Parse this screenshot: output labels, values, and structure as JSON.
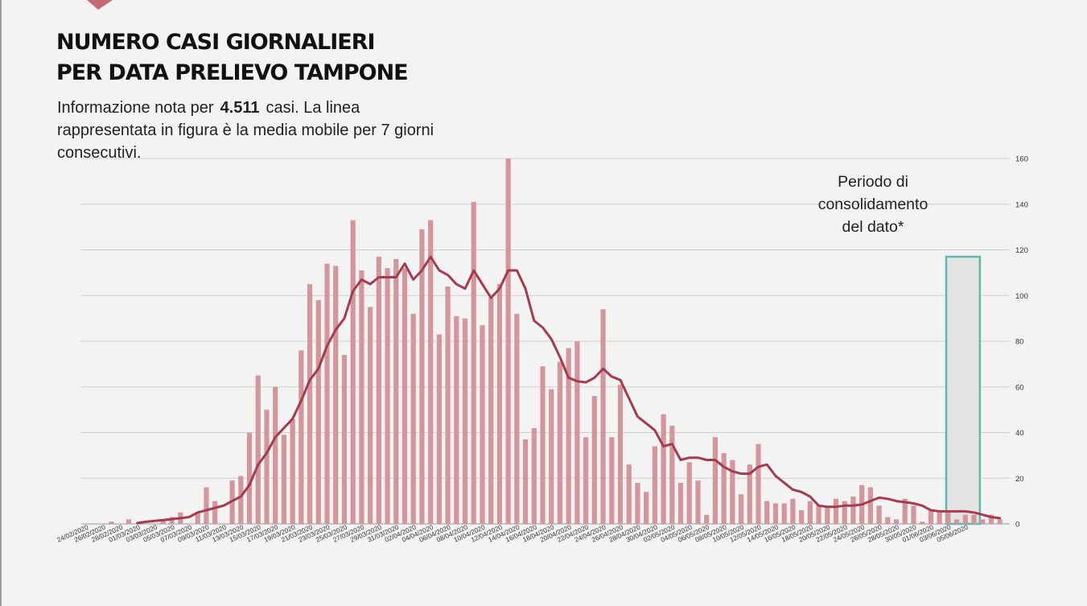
{
  "header": {
    "title_line1": "NUMERO CASI GIORNALIERI",
    "title_line2": "PER DATA PRELIEVO TAMPONE",
    "subtitle_prefix": "Informazione nota per",
    "subtitle_number": "4.511",
    "subtitle_suffix": "casi. La linea rappresentata in figura è la media mobile per 7 giorni consecutivi."
  },
  "annotation": {
    "line1": "Periodo di",
    "line2": "consolidamento",
    "line3": "del dato*"
  },
  "colors": {
    "bar": "#d3969b",
    "line": "#a83a4c",
    "highlight_border": "#5fb8ad",
    "highlight_fill": "#e4e4e4",
    "grid": "#cfcfcf"
  },
  "chart_data": {
    "type": "bar",
    "ylim": [
      0,
      160
    ],
    "yticks": [
      0,
      20,
      40,
      60,
      80,
      100,
      120,
      140,
      160
    ],
    "tick_labels": [
      "24/02/2020",
      "26/02/2020",
      "28/02/2020",
      "01/03/2020",
      "03/03/2020",
      "05/03/2020",
      "07/03/2020",
      "09/03/2020",
      "11/03/2020",
      "13/03/2020",
      "15/03/2020",
      "17/03/2020",
      "19/03/2020",
      "21/03/2020",
      "23/03/2020",
      "25/03/2020",
      "27/03/2020",
      "29/03/2020",
      "31/03/2020",
      "02/04/2020",
      "04/04/2020",
      "06/04/2020",
      "08/04/2020",
      "10/04/2020",
      "12/04/2020",
      "14/04/2020",
      "16/04/2020",
      "18/04/2020",
      "20/04/2020",
      "22/04/2020",
      "24/04/2020",
      "26/04/2020",
      "28/04/2020",
      "30/04/2020",
      "02/05/2020",
      "04/05/2020",
      "06/05/2020",
      "08/05/2020",
      "10/05/2020",
      "12/05/2020",
      "14/05/2020",
      "16/05/2020",
      "18/05/2020",
      "20/05/2020",
      "22/05/2020",
      "24/05/2020",
      "26/05/2020",
      "28/05/2020",
      "30/05/2020",
      "01/06/2020",
      "03/06/2020",
      "05/06/2020"
    ],
    "consolidation_period": {
      "from_index": 100,
      "to_index": 103
    },
    "series": [
      {
        "type": "bar",
        "values": [
          0,
          0,
          0,
          1,
          0,
          2,
          0,
          0,
          0,
          2,
          3,
          5,
          0,
          5,
          16,
          10,
          0,
          19,
          21,
          40,
          65,
          50,
          60,
          39,
          46,
          76,
          105,
          98,
          114,
          113,
          74,
          133,
          111,
          95,
          117,
          112,
          116,
          112,
          92,
          129,
          133,
          83,
          104,
          91,
          90,
          141,
          87,
          99,
          105,
          160,
          92,
          37,
          42,
          69,
          59,
          71,
          77,
          80,
          38,
          56,
          94,
          38,
          61,
          26,
          18,
          14,
          34,
          48,
          43,
          18,
          27,
          19,
          4,
          38,
          31,
          28,
          13,
          26,
          35,
          10,
          9,
          9,
          11,
          6,
          10,
          8,
          8,
          11,
          10,
          12,
          17,
          16,
          8,
          3,
          2,
          11,
          8,
          1,
          6,
          5,
          5,
          2,
          4,
          4,
          2,
          4,
          2
        ]
      },
      {
        "type": "line",
        "values": [
          null,
          null,
          null,
          null,
          null,
          null,
          0.4,
          0.9,
          1.3,
          1.7,
          2.1,
          2.5,
          3.0,
          5.0,
          6.0,
          7.0,
          8.0,
          10.0,
          12.0,
          17.0,
          26.0,
          31.0,
          38.0,
          42.0,
          46.0,
          54.0,
          63.0,
          68.0,
          78.0,
          85.0,
          90.0,
          102.0,
          107.0,
          105.0,
          108.0,
          108.0,
          108.0,
          114.0,
          107.0,
          111.0,
          117.0,
          111.0,
          109.0,
          105.0,
          103.0,
          111.0,
          105.0,
          99.0,
          103.0,
          111.0,
          111.0,
          103.0,
          89.0,
          86.0,
          81.0,
          73.0,
          64.0,
          62.5,
          62.0,
          64.0,
          68.0,
          64.5,
          63.0,
          55.0,
          47.0,
          44.0,
          41.0,
          34.0,
          35.0,
          28.0,
          29.0,
          29.0,
          28.0,
          28.0,
          25.0,
          23.0,
          22.0,
          22.0,
          25.0,
          26.0,
          21.0,
          18.0,
          15.0,
          14.0,
          12.0,
          8.0,
          7.5,
          7.5,
          8.0,
          8.0,
          8.5,
          10.0,
          11.5,
          11.0,
          10.0,
          9.5,
          9.0,
          8.0,
          6.0,
          5.5,
          5.5,
          5.5,
          5.5,
          5.0,
          4.0,
          3.0,
          2.5
        ]
      }
    ]
  }
}
